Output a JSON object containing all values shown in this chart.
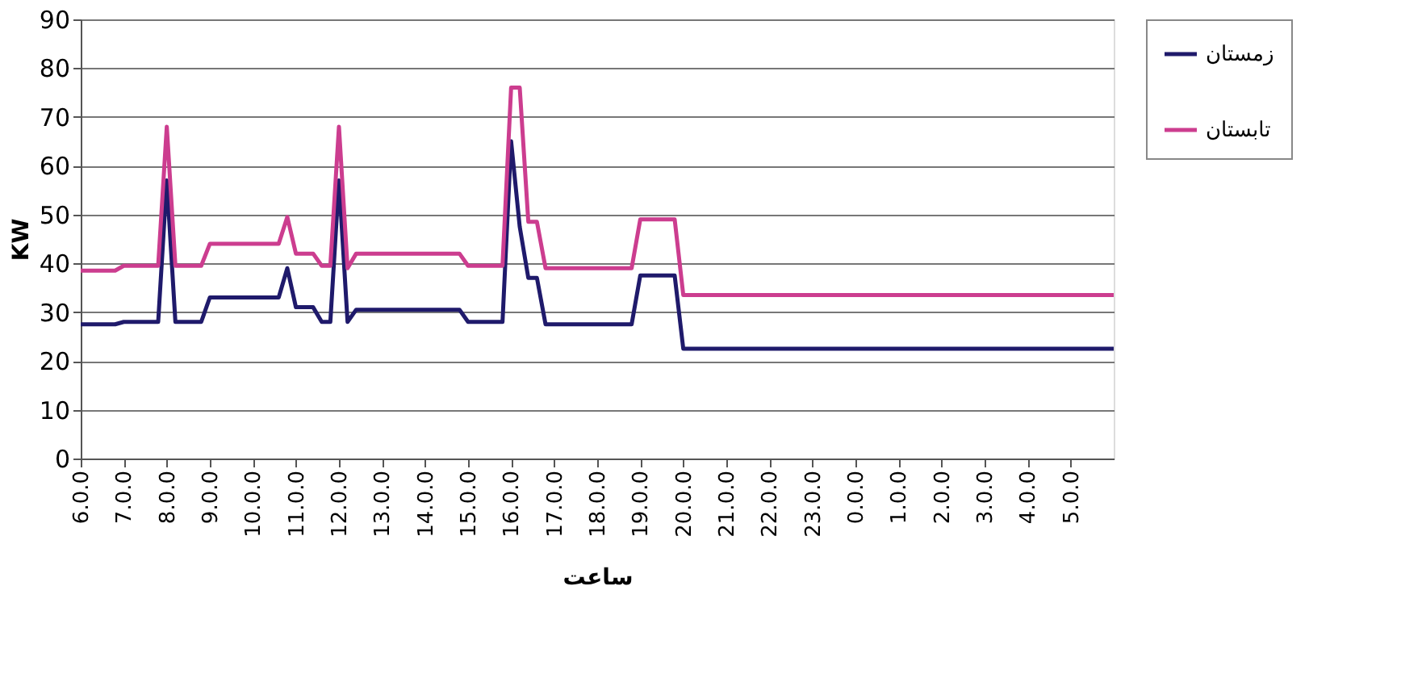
{
  "chart_data": {
    "type": "line",
    "xlabel": "ساعت",
    "ylabel": "KW",
    "categories": [
      "6.0.0",
      null,
      null,
      null,
      null,
      "7.0.0",
      null,
      null,
      null,
      null,
      "8.0.0",
      null,
      null,
      null,
      null,
      "9.0.0",
      null,
      null,
      null,
      null,
      "10.0.0",
      null,
      null,
      null,
      null,
      "11.0.0",
      null,
      null,
      null,
      null,
      "12.0.0",
      null,
      null,
      null,
      null,
      "13.0.0",
      null,
      null,
      null,
      null,
      "14.0.0",
      null,
      null,
      null,
      null,
      "15.0.0",
      null,
      null,
      null,
      null,
      "16.0.0",
      null,
      null,
      null,
      null,
      "17.0.0",
      null,
      null,
      null,
      null,
      "18.0.0",
      null,
      null,
      null,
      null,
      "19.0.0",
      null,
      null,
      null,
      null,
      "20.0.0",
      null,
      null,
      null,
      null,
      "21.0.0",
      null,
      null,
      null,
      null,
      "22.0.0",
      null,
      null,
      null,
      null,
      "23.0.0",
      null,
      null,
      null,
      null,
      "0.0.0",
      null,
      null,
      null,
      null,
      "1.0.0",
      null,
      null,
      null,
      null,
      "2.0.0",
      null,
      null,
      null,
      null,
      "3.0.0",
      null,
      null,
      null,
      null,
      "4.0.0",
      null,
      null,
      null,
      null,
      "5.0.0",
      null,
      null,
      null,
      null,
      null
    ],
    "ylim": [
      0,
      90
    ],
    "yticks": [
      0,
      10,
      20,
      30,
      40,
      50,
      60,
      70,
      80,
      90
    ],
    "grid": "y",
    "legend": "right",
    "marker": "none",
    "line_style": "solid",
    "series": [
      {
        "name": "زمستان",
        "color": "#1f1a6b",
        "values": [
          27.5,
          27.5,
          27.5,
          27.5,
          27.5,
          28,
          28,
          28,
          28,
          28,
          57,
          28,
          28,
          28,
          28,
          33,
          33,
          33,
          33,
          33,
          33,
          33,
          33,
          33,
          39,
          31,
          31,
          31,
          28,
          28,
          57,
          28,
          30.5,
          30.5,
          30.5,
          30.5,
          30.5,
          30.5,
          30.5,
          30.5,
          30.5,
          30.5,
          30.5,
          30.5,
          30.5,
          28,
          28,
          28,
          28,
          28,
          65,
          47.5,
          37,
          37,
          27.5,
          27.5,
          27.5,
          27.5,
          27.5,
          27.5,
          27.5,
          27.5,
          27.5,
          27.5,
          27.5,
          37.5,
          37.5,
          37.5,
          37.5,
          37.5,
          22.5,
          22.5,
          22.5,
          22.5,
          22.5,
          22.5,
          22.5,
          22.5,
          22.5,
          22.5,
          22.5,
          22.5,
          22.5,
          22.5,
          22.5,
          22.5,
          22.5,
          22.5,
          22.5,
          22.5,
          22.5,
          22.5,
          22.5,
          22.5,
          22.5,
          22.5,
          22.5,
          22.5,
          22.5,
          22.5,
          22.5,
          22.5,
          22.5,
          22.5,
          22.5,
          22.5,
          22.5,
          22.5,
          22.5,
          22.5,
          22.5,
          22.5,
          22.5,
          22.5,
          22.5,
          22.5,
          22.5,
          22.5,
          22.5,
          22.5,
          22.5
        ]
      },
      {
        "name": "تابستان",
        "color": "#cc3d8f",
        "values": [
          38.5,
          38.5,
          38.5,
          38.5,
          38.5,
          39.5,
          39.5,
          39.5,
          39.5,
          39.5,
          68,
          39.5,
          39.5,
          39.5,
          39.5,
          44,
          44,
          44,
          44,
          44,
          44,
          44,
          44,
          44,
          49.5,
          42,
          42,
          42,
          39.5,
          39.5,
          68,
          39,
          42,
          42,
          42,
          42,
          42,
          42,
          42,
          42,
          42,
          42,
          42,
          42,
          42,
          39.5,
          39.5,
          39.5,
          39.5,
          39.5,
          76,
          76,
          48.5,
          48.5,
          39,
          39,
          39,
          39,
          39,
          39,
          39,
          39,
          39,
          39,
          39,
          49,
          49,
          49,
          49,
          49,
          33.5,
          33.5,
          33.5,
          33.5,
          33.5,
          33.5,
          33.5,
          33.5,
          33.5,
          33.5,
          33.5,
          33.5,
          33.5,
          33.5,
          33.5,
          33.5,
          33.5,
          33.5,
          33.5,
          33.5,
          33.5,
          33.5,
          33.5,
          33.5,
          33.5,
          33.5,
          33.5,
          33.5,
          33.5,
          33.5,
          33.5,
          33.5,
          33.5,
          33.5,
          33.5,
          33.5,
          33.5,
          33.5,
          33.5,
          33.5,
          33.5,
          33.5,
          33.5,
          33.5,
          33.5,
          33.5,
          33.5,
          33.5,
          33.5,
          33.5,
          33.5
        ]
      }
    ]
  }
}
